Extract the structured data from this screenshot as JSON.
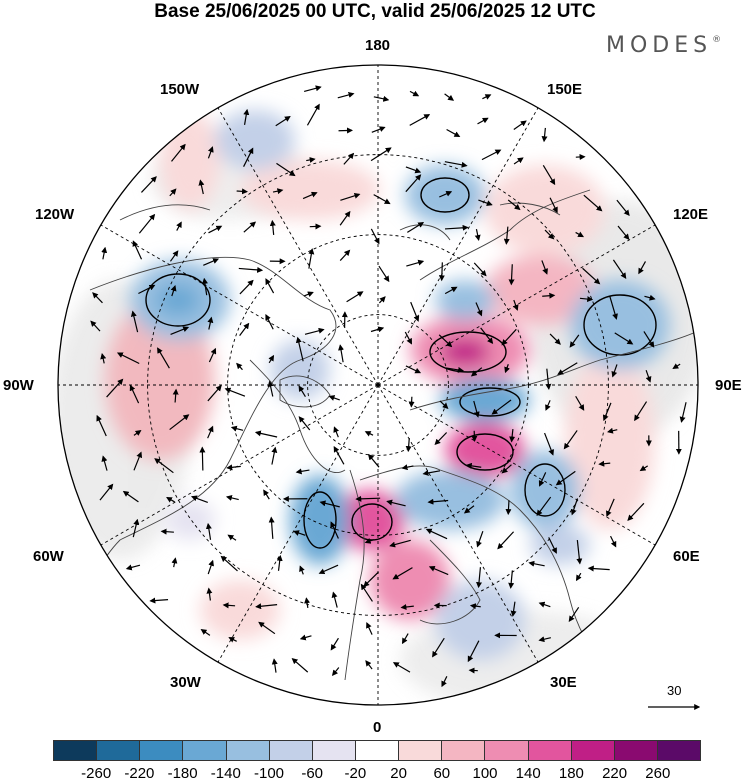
{
  "title": "Base 25/06/2025 00 UTC, valid 25/06/2025 12 UTC",
  "brand": {
    "name": "MODES",
    "mark": "®"
  },
  "projection": "north-polar-stereographic",
  "longitude_labels": {
    "top": "180",
    "top_left": "150W",
    "top_right": "150E",
    "upper_left": "120W",
    "upper_right": "120E",
    "left": "90W",
    "right": "90E",
    "lower_left": "60W",
    "lower_right": "60E",
    "bottom_left": "30W",
    "bottom_right": "30E",
    "bottom": "0"
  },
  "vector_reference": {
    "label": "30"
  },
  "colorbar": {
    "labels": [
      "-260",
      "-220",
      "-180",
      "-140",
      "-100",
      "-60",
      "-20",
      "20",
      "60",
      "100",
      "140",
      "180",
      "220",
      "260"
    ],
    "colors": [
      "#0d3a5c",
      "#1f6a9a",
      "#3c8cc0",
      "#6aa8d4",
      "#98bfe0",
      "#c3d0e8",
      "#e5e3f1",
      "#ffffff",
      "#f9dada",
      "#f4b6c2",
      "#ee8db2",
      "#e2559e",
      "#c01f86",
      "#8a0a70",
      "#5b0a68"
    ]
  }
}
